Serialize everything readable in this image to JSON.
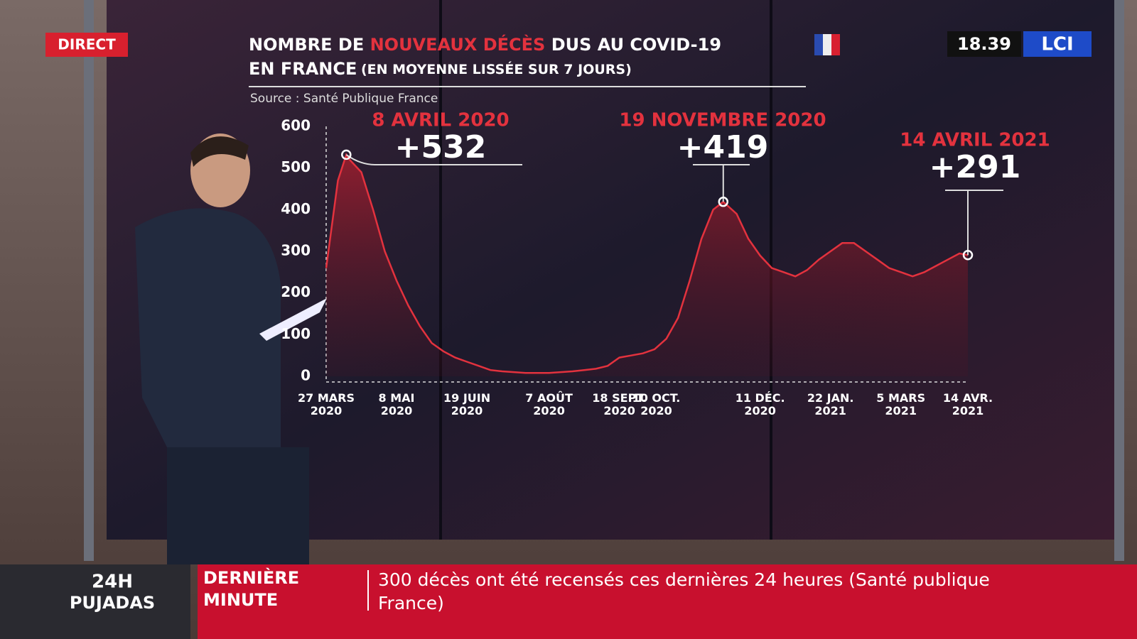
{
  "overlay": {
    "live": "DIRECT",
    "time": "18.39",
    "logo": "LCI"
  },
  "ticker": {
    "show": [
      "24H",
      "PUJADAS"
    ],
    "flag": [
      "DERNIÈRE",
      "MINUTE"
    ],
    "message": "300 décès ont été recensés ces dernières 24 heures (Santé publique France)"
  },
  "chart_data": {
    "type": "line",
    "title": [
      "NOMBRE DE",
      "NOUVEAUX DÉCÈS",
      "DUS AU COVID-19"
    ],
    "subtitle": [
      "EN FRANCE",
      "(EN MOYENNE LISSÉE SUR 7 JOURS)"
    ],
    "source": "Source : Santé Publique France",
    "color": "#e3323e",
    "x": [
      "2020-03-27",
      "2020-04-03",
      "2020-04-08",
      "2020-04-10",
      "2020-04-17",
      "2020-04-24",
      "2020-05-01",
      "2020-05-08",
      "2020-05-15",
      "2020-05-22",
      "2020-05-29",
      "2020-06-05",
      "2020-06-12",
      "2020-06-19",
      "2020-06-26",
      "2020-07-03",
      "2020-07-10",
      "2020-07-17",
      "2020-07-24",
      "2020-07-31",
      "2020-08-07",
      "2020-08-14",
      "2020-08-21",
      "2020-08-28",
      "2020-09-04",
      "2020-09-11",
      "2020-09-18",
      "2020-09-25",
      "2020-10-02",
      "2020-10-09",
      "2020-10-16",
      "2020-10-23",
      "2020-10-30",
      "2020-11-06",
      "2020-11-13",
      "2020-11-19",
      "2020-11-27",
      "2020-12-04",
      "2020-12-11",
      "2020-12-18",
      "2020-12-25",
      "2021-01-01",
      "2021-01-08",
      "2021-01-15",
      "2021-01-22",
      "2021-01-29",
      "2021-02-05",
      "2021-02-12",
      "2021-02-19",
      "2021-02-26",
      "2021-03-05",
      "2021-03-12",
      "2021-03-19",
      "2021-03-26",
      "2021-04-02",
      "2021-04-09",
      "2021-04-14"
    ],
    "values": [
      260,
      470,
      532,
      520,
      490,
      400,
      300,
      230,
      170,
      120,
      80,
      60,
      45,
      35,
      25,
      15,
      12,
      10,
      8,
      8,
      8,
      10,
      12,
      15,
      18,
      25,
      45,
      50,
      55,
      65,
      90,
      140,
      230,
      330,
      400,
      419,
      390,
      330,
      290,
      260,
      250,
      240,
      255,
      280,
      300,
      320,
      320,
      300,
      280,
      260,
      250,
      240,
      250,
      265,
      280,
      295,
      291
    ],
    "ylim": [
      0,
      600
    ],
    "yticks": [
      0,
      100,
      200,
      300,
      400,
      500,
      600
    ],
    "xlim": [
      "2020-03-27",
      "2021-04-14"
    ],
    "xticks": [
      {
        "value": "2020-03-27",
        "label": [
          "27 MARS",
          "2020"
        ]
      },
      {
        "value": "2020-05-08",
        "label": [
          "8 MAI",
          "2020"
        ]
      },
      {
        "value": "2020-06-19",
        "label": [
          "19 JUIN",
          "2020"
        ]
      },
      {
        "value": "2020-08-07",
        "label": [
          "7 AOÛT",
          "2020"
        ]
      },
      {
        "value": "2020-09-18",
        "label": [
          "18 SEPT.",
          "2020"
        ]
      },
      {
        "value": "2020-10-10",
        "label": [
          "10 OCT.",
          "2020"
        ]
      },
      {
        "value": "2020-12-11",
        "label": [
          "11 DÉC.",
          "2020"
        ]
      },
      {
        "value": "2021-01-22",
        "label": [
          "22 JAN.",
          "2021"
        ]
      },
      {
        "value": "2021-03-05",
        "label": [
          "5 MARS",
          "2021"
        ]
      },
      {
        "value": "2021-04-14",
        "label": [
          "14 AVR.",
          "2021"
        ]
      }
    ],
    "annotations": [
      {
        "date": "8 AVRIL 2020",
        "value_label": "+532",
        "x": "2020-04-08",
        "value": 532
      },
      {
        "date": "19 NOVEMBRE 2020",
        "value_label": "+419",
        "x": "2020-11-19",
        "value": 419
      },
      {
        "date": "14 AVRIL 2021",
        "value_label": "+291",
        "x": "2021-04-14",
        "value": 291
      }
    ]
  }
}
